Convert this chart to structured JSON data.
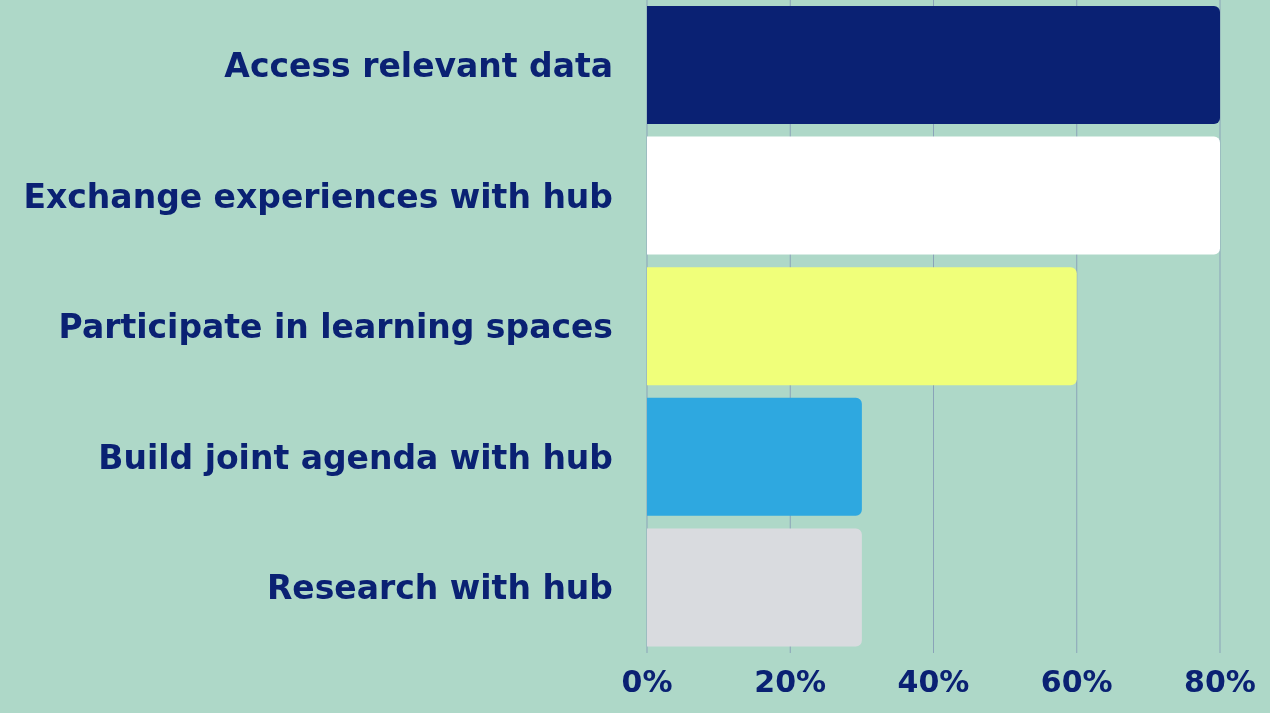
{
  "chart_data": {
    "type": "bar",
    "orientation": "horizontal",
    "categories": [
      "Access relevant data",
      "Exchange experiences with hub",
      "Participate in learning spaces",
      "Build joint agenda with hub",
      "Research with hub"
    ],
    "values": [
      80,
      80,
      60,
      30,
      30
    ],
    "colors": [
      "#0a2173",
      "#ffffff",
      "#f0ff7a",
      "#2ea8e0",
      "#d9dbdf"
    ],
    "xlim": [
      0,
      80
    ],
    "xticks": [
      {
        "value": 0,
        "label": "0%"
      },
      {
        "value": 20,
        "label": "20%"
      },
      {
        "value": 40,
        "label": "40%"
      },
      {
        "value": 60,
        "label": "60%"
      },
      {
        "value": 80,
        "label": "80%"
      }
    ],
    "grid": "x"
  }
}
